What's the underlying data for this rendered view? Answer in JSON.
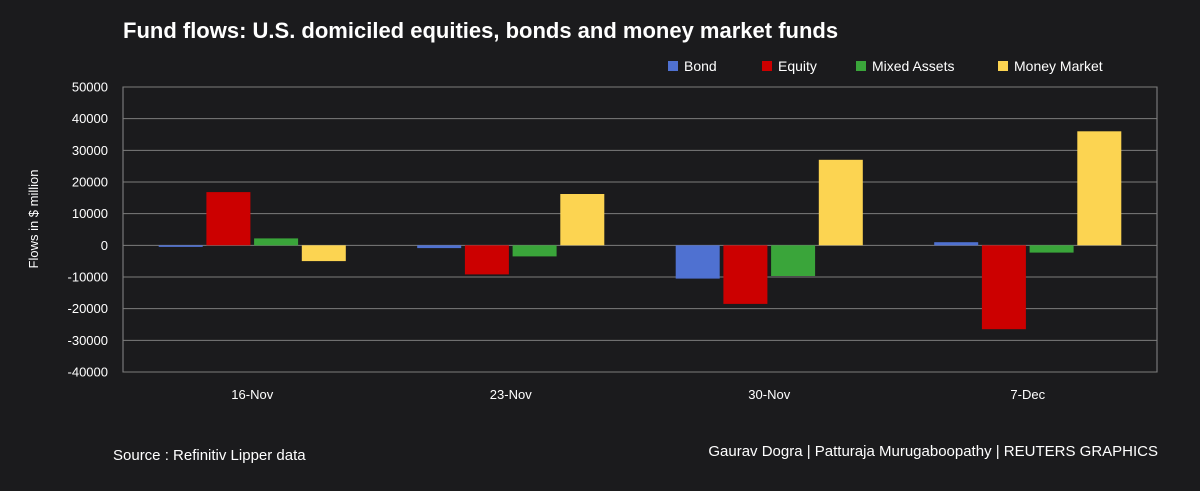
{
  "title": "Fund flows: U.S. domiciled equities, bonds and money market funds",
  "footer": {
    "source": "Source : Refinitiv Lipper data",
    "credits": "Gaurav Dogra | Patturaja Murugaboopathy | REUTERS GRAPHICS"
  },
  "chart_data": {
    "type": "bar",
    "title": "Fund flows: U.S. domiciled equities, bonds and money market funds",
    "xlabel": "",
    "ylabel": "Flows in $ million",
    "categories": [
      "16-Nov",
      "23-Nov",
      "30-Nov",
      "7-Dec"
    ],
    "ylim": [
      -40000,
      50000
    ],
    "yticks": [
      50000,
      40000,
      30000,
      20000,
      10000,
      0,
      -10000,
      -20000,
      -30000,
      -40000
    ],
    "grid": true,
    "legend_position": "top-right",
    "series": [
      {
        "name": "Bond",
        "color": "#4f71d1",
        "values": [
          -500,
          -900,
          -10500,
          1000
        ]
      },
      {
        "name": "Equity",
        "color": "#cc0000",
        "values": [
          16800,
          -9200,
          -18500,
          -26500
        ]
      },
      {
        "name": "Mixed Assets",
        "color": "#3aa53a",
        "values": [
          2200,
          -3500,
          -9700,
          -2300
        ]
      },
      {
        "name": "Money Market",
        "color": "#fcd451",
        "values": [
          -5000,
          16200,
          27000,
          36000
        ]
      }
    ]
  }
}
